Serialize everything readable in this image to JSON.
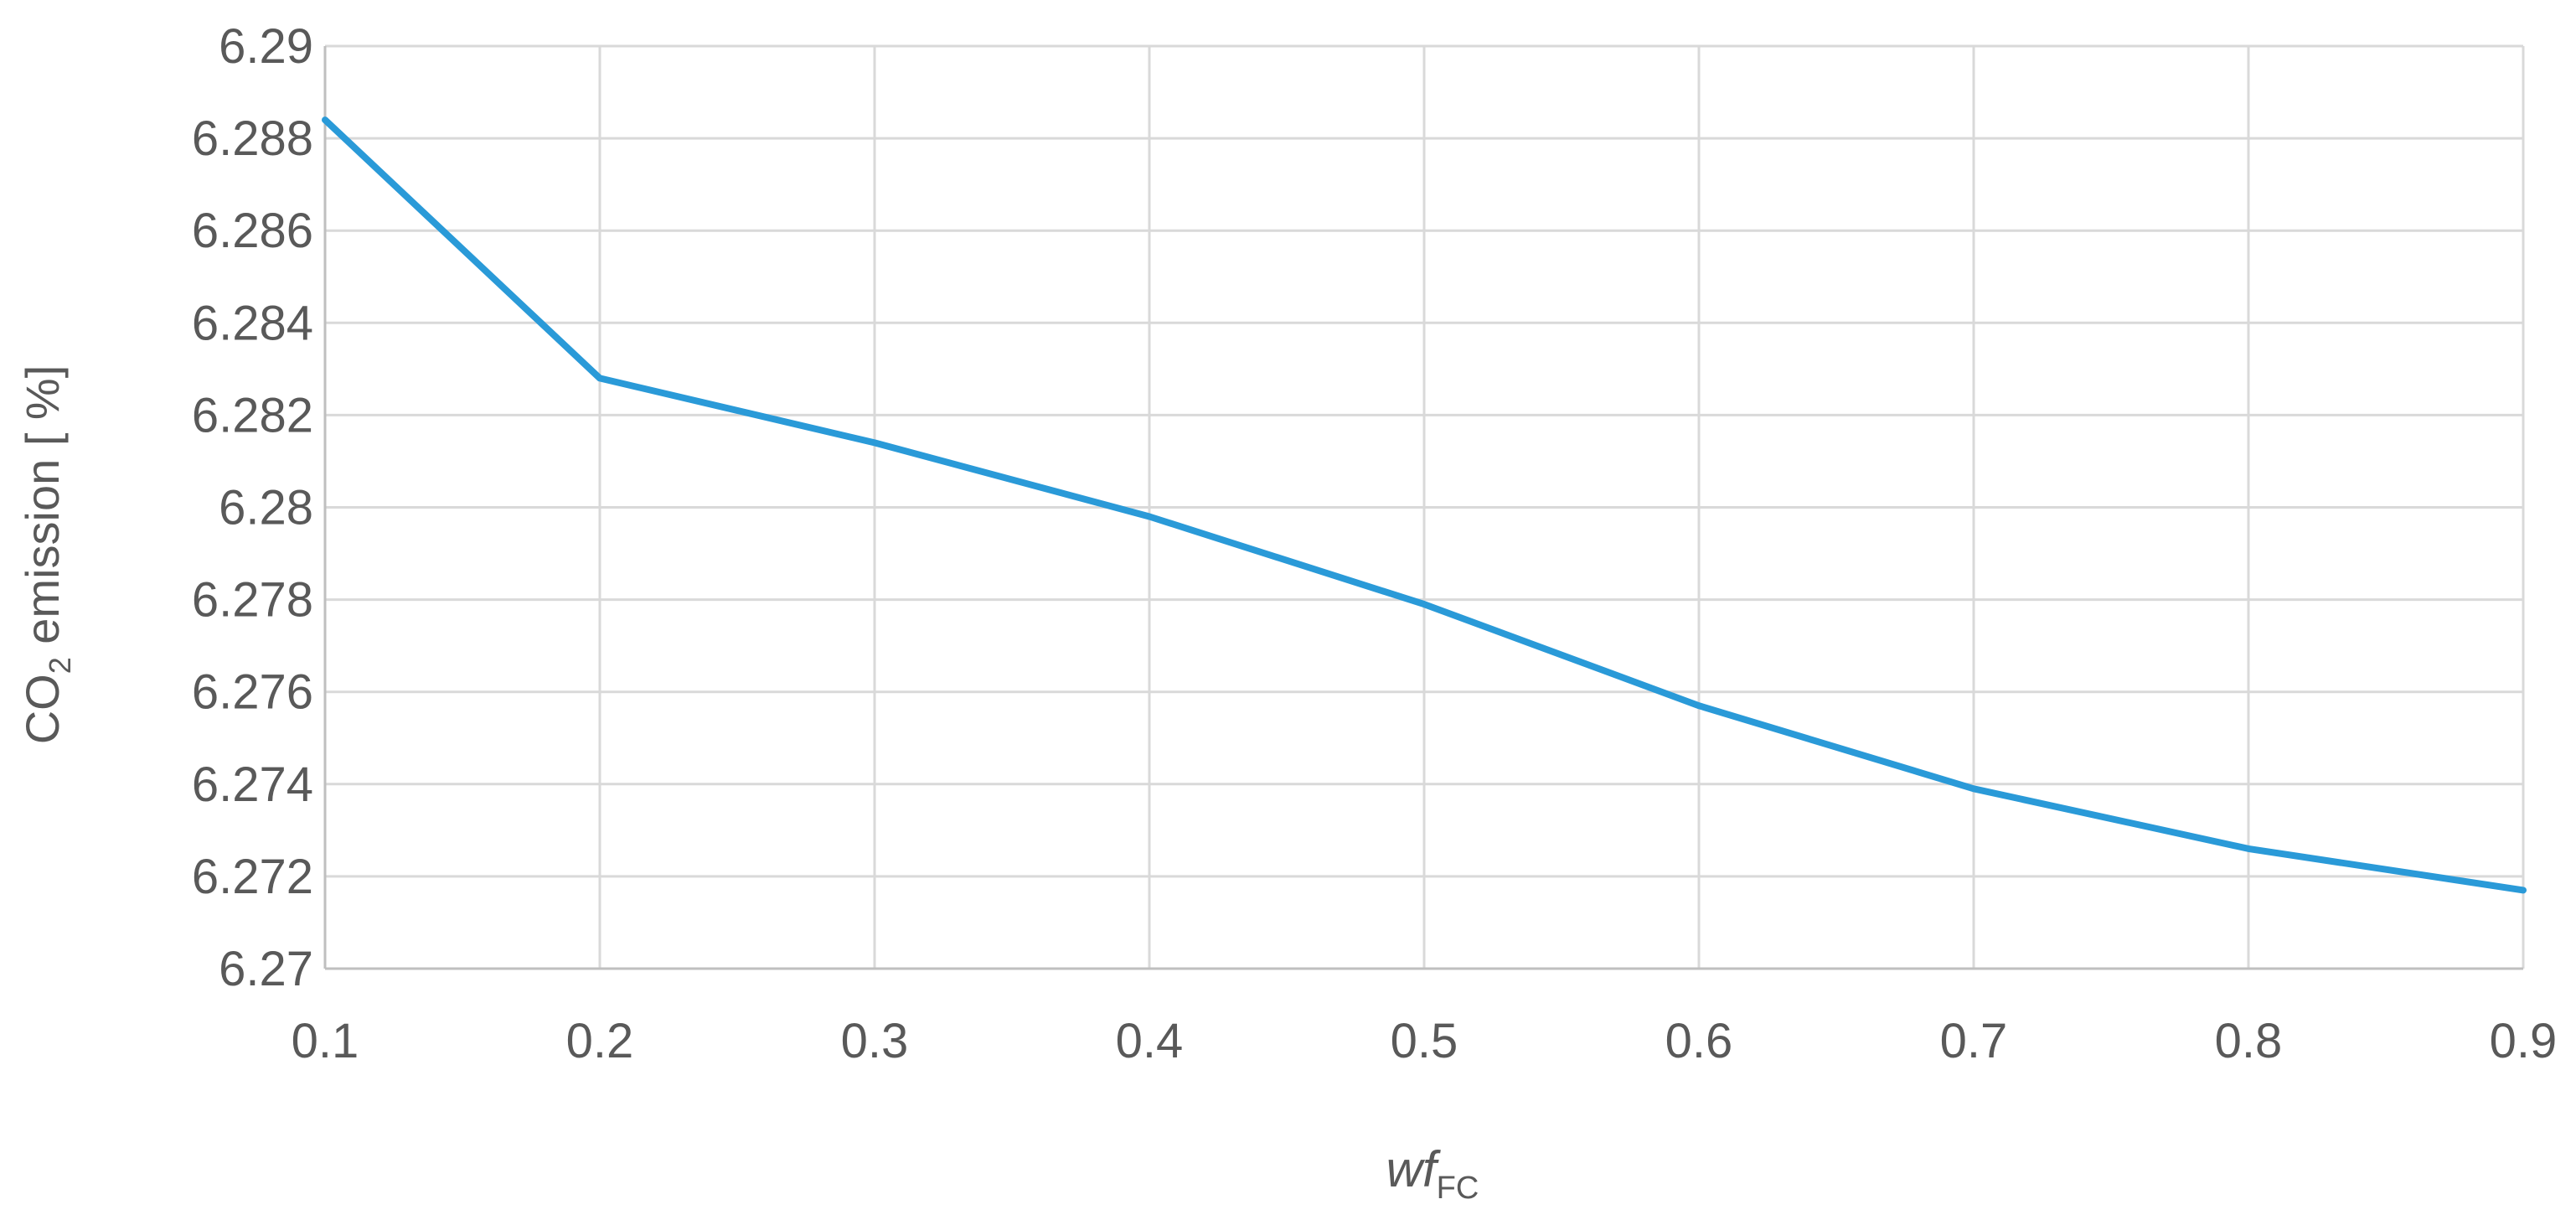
{
  "chart_data": {
    "type": "line",
    "title": "",
    "xlabel": {
      "main": "wf",
      "sub": "FC"
    },
    "ylabel": {
      "pre": "CO",
      "sub": "2",
      "post": " emission [ %]"
    },
    "x": [
      0.1,
      0.2,
      0.3,
      0.4,
      0.5,
      0.6,
      0.7,
      0.8,
      0.9
    ],
    "xlim": [
      0.1,
      0.9
    ],
    "ylim": [
      6.27,
      6.29
    ],
    "xticks": [
      "0.1",
      "0.2",
      "0.3",
      "0.4",
      "0.5",
      "0.6",
      "0.7",
      "0.8",
      "0.9"
    ],
    "yticks": [
      "6.27",
      "6.272",
      "6.274",
      "6.276",
      "6.278",
      "6.28",
      "6.282",
      "6.284",
      "6.286",
      "6.288",
      "6.29"
    ],
    "grid": true,
    "legend": "none",
    "series": [
      {
        "color": "#2A9AD8",
        "values": [
          6.2884,
          6.2828,
          6.2814,
          6.2798,
          6.2779,
          6.2757,
          6.2739,
          6.2726,
          6.2717
        ]
      }
    ]
  }
}
